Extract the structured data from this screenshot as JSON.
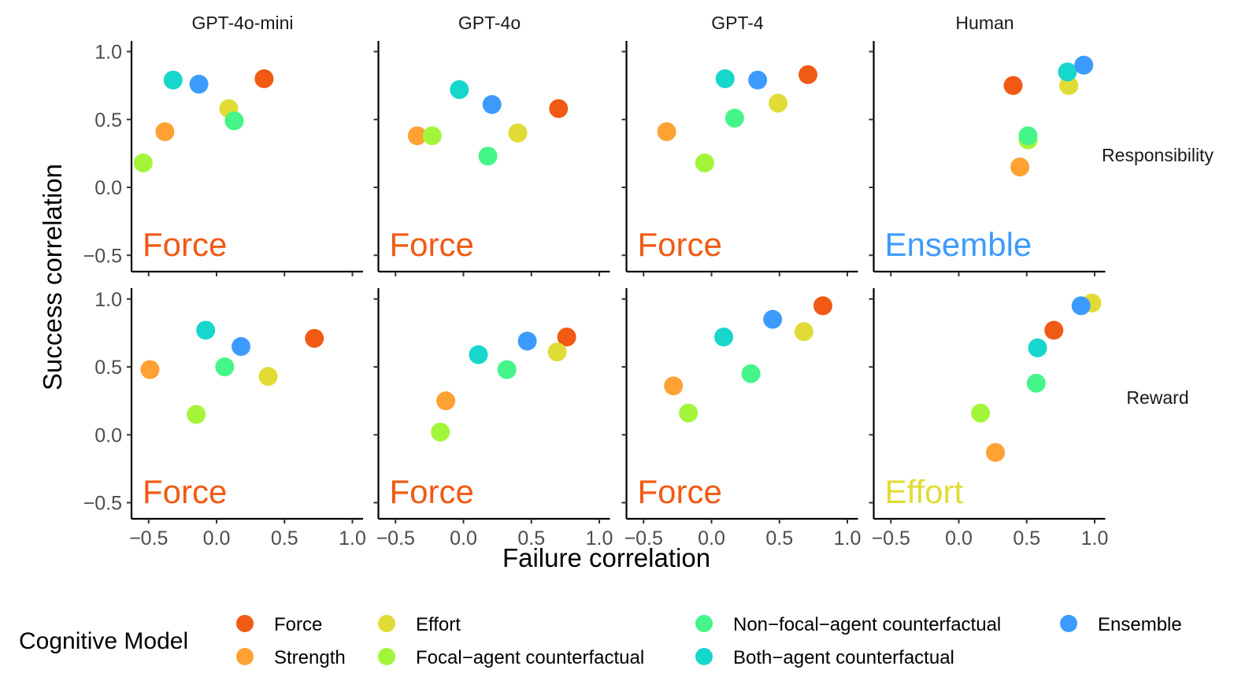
{
  "chart_data": {
    "type": "scatter",
    "title": "",
    "xlabel": "Failure correlation",
    "ylabel": "Success correlation",
    "xlim": [
      -0.6,
      1.1
    ],
    "ylim": [
      -0.6,
      1.08
    ],
    "xticks": [
      "−0.5",
      "0.0",
      "0.5",
      "1.0"
    ],
    "xtick_values": [
      -0.5,
      0.0,
      0.5,
      1.0
    ],
    "yticks": [
      "−0.5",
      "0.0",
      "0.5",
      "1.0"
    ],
    "ytick_values": [
      -0.5,
      0.0,
      0.5,
      1.0
    ],
    "grid": false,
    "columns": [
      "GPT-4o-mini",
      "GPT-4o",
      "GPT-4",
      "Human"
    ],
    "rows": [
      "Responsibility",
      "Reward"
    ],
    "legend": {
      "title": "Cognitive Model",
      "position": "bottom",
      "entries": [
        {
          "name": "Force",
          "color": "#F05A14"
        },
        {
          "name": "Strength",
          "color": "#FFA233"
        },
        {
          "name": "Effort",
          "color": "#E0DC35"
        },
        {
          "name": "Focal−agent counterfactual",
          "color": "#A3F53A"
        },
        {
          "name": "Non−focal−agent counterfactual",
          "color": "#45F58A"
        },
        {
          "name": "Both−agent counterfactual",
          "color": "#17D6CC"
        },
        {
          "name": "Ensemble",
          "color": "#3D9BFF"
        }
      ]
    },
    "panels": [
      {
        "row": "Responsibility",
        "column": "GPT-4o-mini",
        "best_model": "Force",
        "points": [
          {
            "model": "Force",
            "x": 0.35,
            "y": 0.8
          },
          {
            "model": "Strength",
            "x": -0.38,
            "y": 0.41
          },
          {
            "model": "Effort",
            "x": 0.09,
            "y": 0.58
          },
          {
            "model": "Focal−agent counterfactual",
            "x": -0.54,
            "y": 0.18
          },
          {
            "model": "Non−focal−agent counterfactual",
            "x": 0.13,
            "y": 0.49
          },
          {
            "model": "Both−agent counterfactual",
            "x": -0.32,
            "y": 0.79
          },
          {
            "model": "Ensemble",
            "x": -0.13,
            "y": 0.76
          }
        ]
      },
      {
        "row": "Responsibility",
        "column": "GPT-4o",
        "best_model": "Force",
        "points": [
          {
            "model": "Force",
            "x": 0.7,
            "y": 0.58
          },
          {
            "model": "Strength",
            "x": -0.34,
            "y": 0.38
          },
          {
            "model": "Effort",
            "x": 0.4,
            "y": 0.4
          },
          {
            "model": "Focal−agent counterfactual",
            "x": -0.23,
            "y": 0.38
          },
          {
            "model": "Non−focal−agent counterfactual",
            "x": 0.18,
            "y": 0.23
          },
          {
            "model": "Both−agent counterfactual",
            "x": -0.03,
            "y": 0.72
          },
          {
            "model": "Ensemble",
            "x": 0.21,
            "y": 0.61
          }
        ]
      },
      {
        "row": "Responsibility",
        "column": "GPT-4",
        "best_model": "Force",
        "points": [
          {
            "model": "Force",
            "x": 0.71,
            "y": 0.83
          },
          {
            "model": "Strength",
            "x": -0.33,
            "y": 0.41
          },
          {
            "model": "Effort",
            "x": 0.49,
            "y": 0.62
          },
          {
            "model": "Focal−agent counterfactual",
            "x": -0.05,
            "y": 0.18
          },
          {
            "model": "Non−focal−agent counterfactual",
            "x": 0.17,
            "y": 0.51
          },
          {
            "model": "Both−agent counterfactual",
            "x": 0.1,
            "y": 0.8
          },
          {
            "model": "Ensemble",
            "x": 0.34,
            "y": 0.79
          }
        ]
      },
      {
        "row": "Responsibility",
        "column": "Human",
        "best_model": "Ensemble",
        "points": [
          {
            "model": "Force",
            "x": 0.4,
            "y": 0.75
          },
          {
            "model": "Strength",
            "x": 0.45,
            "y": 0.15
          },
          {
            "model": "Effort",
            "x": 0.81,
            "y": 0.75
          },
          {
            "model": "Focal−agent counterfactual",
            "x": 0.51,
            "y": 0.35
          },
          {
            "model": "Non−focal−agent counterfactual",
            "x": 0.51,
            "y": 0.38
          },
          {
            "model": "Both−agent counterfactual",
            "x": 0.8,
            "y": 0.85
          },
          {
            "model": "Ensemble",
            "x": 0.92,
            "y": 0.9
          }
        ]
      },
      {
        "row": "Reward",
        "column": "GPT-4o-mini",
        "best_model": "Force",
        "points": [
          {
            "model": "Force",
            "x": 0.72,
            "y": 0.71
          },
          {
            "model": "Strength",
            "x": -0.49,
            "y": 0.48
          },
          {
            "model": "Effort",
            "x": 0.38,
            "y": 0.43
          },
          {
            "model": "Focal−agent counterfactual",
            "x": -0.15,
            "y": 0.15
          },
          {
            "model": "Non−focal−agent counterfactual",
            "x": 0.06,
            "y": 0.5
          },
          {
            "model": "Both−agent counterfactual",
            "x": -0.08,
            "y": 0.77
          },
          {
            "model": "Ensemble",
            "x": 0.18,
            "y": 0.65
          }
        ]
      },
      {
        "row": "Reward",
        "column": "GPT-4o",
        "best_model": "Force",
        "points": [
          {
            "model": "Force",
            "x": 0.76,
            "y": 0.72
          },
          {
            "model": "Strength",
            "x": -0.13,
            "y": 0.25
          },
          {
            "model": "Effort",
            "x": 0.69,
            "y": 0.61
          },
          {
            "model": "Focal−agent counterfactual",
            "x": -0.17,
            "y": 0.02
          },
          {
            "model": "Non−focal−agent counterfactual",
            "x": 0.32,
            "y": 0.48
          },
          {
            "model": "Both−agent counterfactual",
            "x": 0.11,
            "y": 0.59
          },
          {
            "model": "Ensemble",
            "x": 0.47,
            "y": 0.69
          }
        ]
      },
      {
        "row": "Reward",
        "column": "GPT-4",
        "best_model": "Force",
        "points": [
          {
            "model": "Force",
            "x": 0.82,
            "y": 0.95
          },
          {
            "model": "Strength",
            "x": -0.28,
            "y": 0.36
          },
          {
            "model": "Effort",
            "x": 0.68,
            "y": 0.76
          },
          {
            "model": "Focal−agent counterfactual",
            "x": -0.17,
            "y": 0.16
          },
          {
            "model": "Non−focal−agent counterfactual",
            "x": 0.29,
            "y": 0.45
          },
          {
            "model": "Both−agent counterfactual",
            "x": 0.09,
            "y": 0.72
          },
          {
            "model": "Ensemble",
            "x": 0.45,
            "y": 0.85
          }
        ]
      },
      {
        "row": "Reward",
        "column": "Human",
        "best_model": "Effort",
        "points": [
          {
            "model": "Force",
            "x": 0.7,
            "y": 0.77
          },
          {
            "model": "Strength",
            "x": 0.27,
            "y": -0.13
          },
          {
            "model": "Effort",
            "x": 0.98,
            "y": 0.97
          },
          {
            "model": "Focal−agent counterfactual",
            "x": 0.16,
            "y": 0.16
          },
          {
            "model": "Non−focal−agent counterfactual",
            "x": 0.57,
            "y": 0.38
          },
          {
            "model": "Both−agent counterfactual",
            "x": 0.58,
            "y": 0.64
          },
          {
            "model": "Ensemble",
            "x": 0.9,
            "y": 0.95
          }
        ]
      }
    ]
  }
}
